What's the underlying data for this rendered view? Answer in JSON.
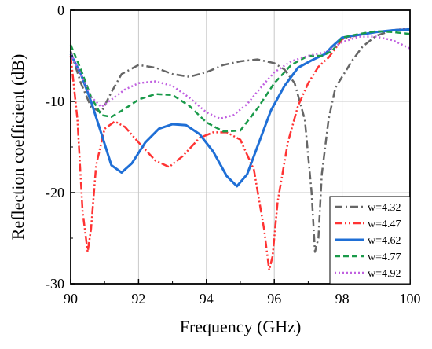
{
  "chart_data": {
    "type": "line",
    "title": "",
    "xlabel": "Frequency (GHz)",
    "ylabel": "Reflection coefficient (dB)",
    "xlim": [
      90,
      100
    ],
    "ylim": [
      -30,
      0
    ],
    "xticks": [
      90,
      92,
      94,
      96,
      98,
      100
    ],
    "yticks": [
      0,
      -10,
      -20,
      -30
    ],
    "xtick_labels": [
      "90",
      "92",
      "94",
      "96",
      "98",
      "100"
    ],
    "ytick_labels": [
      "0",
      "-10",
      "-20",
      "-30"
    ],
    "grid": true,
    "legend_position": "bottom-right",
    "series": [
      {
        "name": "w=4.32",
        "color": "#666666",
        "dash": "dash-dot",
        "x": [
          90,
          90.3,
          90.6,
          90.9,
          91.2,
          91.5,
          92.0,
          92.5,
          93.0,
          93.5,
          94.0,
          94.5,
          95.0,
          95.5,
          96.0,
          96.3,
          96.6,
          96.9,
          97.1,
          97.2,
          97.3,
          97.4,
          97.6,
          97.8,
          98.0,
          98.3,
          98.6,
          99.0,
          99.5,
          100
        ],
        "values": [
          -4.5,
          -8.0,
          -10.6,
          -11.2,
          -9.0,
          -7.0,
          -6.0,
          -6.3,
          -7.0,
          -7.3,
          -6.8,
          -6.0,
          -5.6,
          -5.4,
          -5.8,
          -6.5,
          -8.0,
          -12.0,
          -20.0,
          -26.5,
          -25.0,
          -18.0,
          -12.0,
          -8.5,
          -7.3,
          -5.5,
          -4.0,
          -2.8,
          -2.2,
          -2.0
        ]
      },
      {
        "name": "w=4.47",
        "color": "#ff3333",
        "dash": "dash-dot-dot",
        "x": [
          90,
          90.2,
          90.35,
          90.5,
          90.6,
          90.75,
          91.0,
          91.3,
          91.6,
          92.0,
          92.5,
          92.9,
          93.3,
          93.8,
          94.2,
          94.6,
          95.0,
          95.4,
          95.7,
          95.85,
          95.95,
          96.1,
          96.4,
          96.7,
          97.0,
          97.3,
          97.6,
          98.0,
          98.5,
          99.0,
          99.5,
          100
        ],
        "values": [
          -5.0,
          -12.0,
          -22.0,
          -26.5,
          -24.0,
          -17.0,
          -13.0,
          -12.2,
          -12.8,
          -14.5,
          -16.5,
          -17.2,
          -16.0,
          -14.0,
          -13.4,
          -13.4,
          -14.2,
          -17.5,
          -24.0,
          -28.5,
          -27.0,
          -21.0,
          -14.5,
          -10.5,
          -8.0,
          -6.2,
          -5.2,
          -3.2,
          -2.7,
          -2.4,
          -2.2,
          -2.0
        ]
      },
      {
        "name": "w=4.62",
        "color": "#1f6fd6",
        "dash": "solid",
        "x": [
          90,
          90.3,
          90.6,
          90.9,
          91.2,
          91.5,
          91.8,
          92.2,
          92.6,
          93.0,
          93.4,
          93.8,
          94.2,
          94.6,
          94.9,
          95.2,
          95.5,
          95.9,
          96.3,
          96.7,
          97.1,
          97.5,
          97.7,
          98.0,
          98.5,
          99.0,
          99.5,
          100
        ],
        "values": [
          -4.8,
          -7.0,
          -10.0,
          -13.5,
          -17.0,
          -17.8,
          -16.8,
          -14.5,
          -13.0,
          -12.5,
          -12.6,
          -13.6,
          -15.5,
          -18.2,
          -19.3,
          -18.0,
          -15.0,
          -11.0,
          -8.3,
          -6.3,
          -5.5,
          -4.8,
          -4.0,
          -3.0,
          -2.7,
          -2.4,
          -2.2,
          -2.1
        ]
      },
      {
        "name": "w=4.77",
        "color": "#1a9a4a",
        "dash": "dashed",
        "x": [
          90,
          90.3,
          90.6,
          90.9,
          91.2,
          91.6,
          92.0,
          92.5,
          93.0,
          93.5,
          94.0,
          94.5,
          95.0,
          95.5,
          96.0,
          96.5,
          97.0,
          97.4,
          97.7,
          98.0,
          98.5,
          99.0,
          99.5,
          100
        ],
        "values": [
          -3.8,
          -6.5,
          -9.5,
          -11.5,
          -11.7,
          -10.8,
          -9.8,
          -9.2,
          -9.3,
          -10.5,
          -12.3,
          -13.3,
          -13.2,
          -10.8,
          -8.0,
          -6.0,
          -5.0,
          -5.0,
          -4.5,
          -3.0,
          -2.6,
          -2.3,
          -2.4,
          -2.6
        ]
      },
      {
        "name": "w=4.92",
        "color": "#c060e0",
        "dash": "dotted",
        "x": [
          90,
          90.3,
          90.6,
          90.9,
          91.2,
          91.6,
          92.0,
          92.5,
          93.0,
          93.5,
          94.0,
          94.4,
          94.8,
          95.2,
          95.6,
          96.0,
          96.5,
          97.0,
          97.5,
          98.0,
          98.5,
          99.0,
          99.5,
          100
        ],
        "values": [
          -4.8,
          -7.0,
          -9.5,
          -10.6,
          -9.8,
          -8.7,
          -8.0,
          -7.8,
          -8.3,
          -9.6,
          -11.2,
          -11.9,
          -11.5,
          -10.3,
          -8.5,
          -6.8,
          -5.6,
          -5.0,
          -4.6,
          -3.5,
          -2.9,
          -2.9,
          -3.3,
          -4.2
        ]
      }
    ]
  }
}
